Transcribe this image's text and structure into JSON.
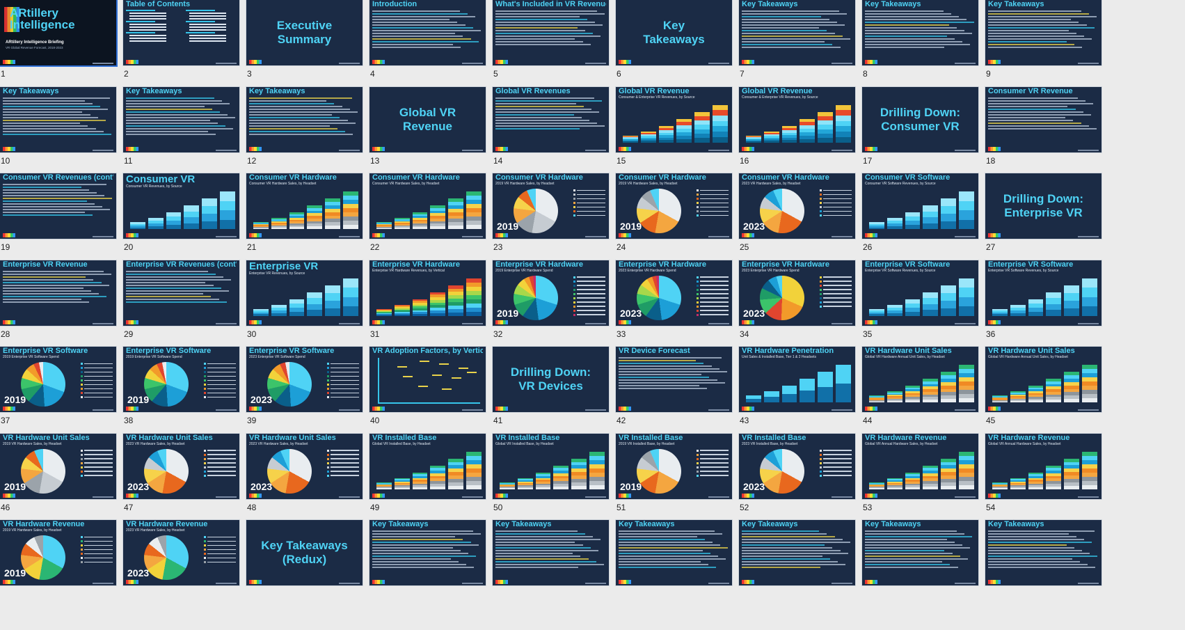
{
  "app": {
    "name": "Slide Sorter"
  },
  "slides": [
    {
      "num": "1",
      "kind": "cover",
      "title": "ARtillery Intelligence",
      "sub1": "ARtillery Intelligence Briefing",
      "sub2": "VR Global Revenue Forecast, 2018-2023"
    },
    {
      "num": "2",
      "kind": "toc",
      "title": "Table of Contents"
    },
    {
      "num": "3",
      "kind": "section",
      "title": "Executive\nSummary"
    },
    {
      "num": "4",
      "kind": "text",
      "title": "Introduction",
      "lines": 14
    },
    {
      "num": "5",
      "kind": "text2",
      "title": "What's Included in VR Revenue Totals?",
      "lines": 13
    },
    {
      "num": "6",
      "kind": "section",
      "title": "Key\nTakeaways"
    },
    {
      "num": "7",
      "kind": "text",
      "title": "Key Takeaways",
      "lines": 14
    },
    {
      "num": "8",
      "kind": "text",
      "title": "Key Takeaways",
      "lines": 14
    },
    {
      "num": "9",
      "kind": "text",
      "title": "Key Takeaways",
      "lines": 14
    },
    {
      "num": "10",
      "kind": "text",
      "title": "Key Takeaways",
      "lines": 14
    },
    {
      "num": "11",
      "kind": "text",
      "title": "Key Takeaways",
      "lines": 14
    },
    {
      "num": "12",
      "kind": "text",
      "title": "Key Takeaways",
      "lines": 14
    },
    {
      "num": "13",
      "kind": "section",
      "title": "Global VR\nRevenue"
    },
    {
      "num": "14",
      "kind": "bullets",
      "title": "Global VR Revenues",
      "lines": 12
    },
    {
      "num": "15",
      "kind": "bars",
      "title": "Global VR Revenue",
      "subtitle": "Consumer & Enterprise VR Revenues, by Source",
      "palette": "a"
    },
    {
      "num": "16",
      "kind": "bars",
      "title": "Global VR Revenue",
      "subtitle": "Consumer & Enterprise VR Revenues, by Source",
      "palette": "a"
    },
    {
      "num": "17",
      "kind": "section",
      "title": "Drilling Down:\nConsumer VR"
    },
    {
      "num": "18",
      "kind": "bullets",
      "title": "Consumer VR Revenue",
      "lines": 12
    },
    {
      "num": "19",
      "kind": "bullets",
      "title": "Consumer VR Revenues (cont'd)",
      "lines": 12
    },
    {
      "num": "20",
      "kind": "bars",
      "title": "Consumer VR",
      "big": true,
      "subtitle": "Consumer VR Revenues, by Source",
      "palette": "b"
    },
    {
      "num": "21",
      "kind": "bars",
      "title": "Consumer VR Hardware",
      "subtitle": "Consumer VR Hardware Sales, by Headset",
      "palette": "c"
    },
    {
      "num": "22",
      "kind": "bars",
      "title": "Consumer VR Hardware",
      "subtitle": "Consumer VR Hardware Sales, by Headset",
      "palette": "c"
    },
    {
      "num": "23",
      "kind": "pie",
      "title": "Consumer VR Hardware",
      "subtitle": "2019 VR Hardware Sales, by Headset",
      "year": "2019",
      "palette": "p1"
    },
    {
      "num": "24",
      "kind": "pie",
      "title": "Consumer VR Hardware",
      "subtitle": "2019 VR Hardware Sales, by Headset",
      "year": "2019",
      "palette": "p2"
    },
    {
      "num": "25",
      "kind": "pie",
      "title": "Consumer VR Hardware",
      "subtitle": "2023 VR Hardware Sales, by Headset",
      "year": "2023",
      "palette": "p3"
    },
    {
      "num": "26",
      "kind": "bars",
      "title": "Consumer VR Software",
      "subtitle": "Consumer VR Software Revenues, by Source",
      "palette": "b"
    },
    {
      "num": "27",
      "kind": "section",
      "title": "Drilling Down:\nEnterprise VR"
    },
    {
      "num": "28",
      "kind": "bullets",
      "title": "Enterprise VR Revenue",
      "lines": 12
    },
    {
      "num": "29",
      "kind": "bullets",
      "title": "Enterprise VR Revenues (cont'd)",
      "lines": 12
    },
    {
      "num": "30",
      "kind": "bars",
      "title": "Enterprise VR",
      "big": true,
      "subtitle": "Enterprise VR Revenues, by Source",
      "palette": "b"
    },
    {
      "num": "31",
      "kind": "bars",
      "title": "Enterprise VR Hardware",
      "subtitle": "Enterprise VR Hardware Revenues, by Vertical",
      "palette": "d"
    },
    {
      "num": "32",
      "kind": "pie",
      "title": "Enterprise VR Hardware",
      "subtitle": "2019 Enterprise VR Hardware Spend",
      "year": "2019",
      "palette": "p4"
    },
    {
      "num": "33",
      "kind": "pie",
      "title": "Enterprise VR Hardware",
      "subtitle": "2023 Enterprise VR Hardware Spend",
      "year": "2023",
      "palette": "p4"
    },
    {
      "num": "34",
      "kind": "pie",
      "title": "Enterprise VR Hardware",
      "subtitle": "2023 Enterprise VR Hardware Spend",
      "year": "2023",
      "palette": "p5"
    },
    {
      "num": "35",
      "kind": "bars",
      "title": "Enterprise VR Software",
      "subtitle": "Enterprise VR Software Revenues, by Source",
      "palette": "b"
    },
    {
      "num": "36",
      "kind": "bars",
      "title": "Enterprise VR Software",
      "subtitle": "Enterprise VR Software Revenues, by Source",
      "palette": "b"
    },
    {
      "num": "37",
      "kind": "pie",
      "title": "Enterprise VR Software",
      "subtitle": "2019 Enterprise VR Software Spend",
      "year": "2019",
      "palette": "p6"
    },
    {
      "num": "38",
      "kind": "pie",
      "title": "Enterprise VR Software",
      "subtitle": "2019 Enterprise VR Software Spend",
      "year": "2019",
      "palette": "p6"
    },
    {
      "num": "39",
      "kind": "pie",
      "title": "Enterprise VR Software",
      "subtitle": "2023 Enterprise VR Software Spend",
      "year": "2023",
      "palette": "p6"
    },
    {
      "num": "40",
      "kind": "adoption",
      "title": "VR Adoption Factors, by Vertical"
    },
    {
      "num": "41",
      "kind": "section",
      "title": "Drilling Down:\nVR Devices"
    },
    {
      "num": "42",
      "kind": "bullets",
      "title": "VR Device Forecast",
      "lines": 12
    },
    {
      "num": "43",
      "kind": "bars",
      "title": "VR Hardware Penetration",
      "subtitle": "Unit Sales & Installed Base, Tier 1 & 2 Headsets",
      "palette": "e"
    },
    {
      "num": "44",
      "kind": "bars",
      "title": "VR Hardware Unit Sales",
      "subtitle": "Global VR Hardware Annual Unit Sales, by Headset",
      "palette": "c"
    },
    {
      "num": "45",
      "kind": "bars",
      "title": "VR Hardware Unit Sales",
      "subtitle": "Global VR Hardware Annual Unit Sales, by Headset",
      "palette": "c"
    },
    {
      "num": "46",
      "kind": "pie",
      "title": "VR Hardware Unit Sales",
      "subtitle": "2019 VR Hardware Sales, by Headset",
      "year": "2019",
      "palette": "p1"
    },
    {
      "num": "47",
      "kind": "pie",
      "title": "VR Hardware Unit Sales",
      "subtitle": "2023 VR Hardware Sales, by Headset",
      "year": "2023",
      "palette": "p3"
    },
    {
      "num": "48",
      "kind": "pie",
      "title": "VR Hardware Unit Sales",
      "subtitle": "2023 VR Hardware Sales, by Headset",
      "year": "2023",
      "palette": "p3"
    },
    {
      "num": "49",
      "kind": "bars",
      "title": "VR Installed Base",
      "subtitle": "Global VR Installed Base, by Headset",
      "palette": "c"
    },
    {
      "num": "50",
      "kind": "bars",
      "title": "VR Installed Base",
      "subtitle": "Global VR Installed Base, by Headset",
      "palette": "c"
    },
    {
      "num": "51",
      "kind": "pie",
      "title": "VR Installed Base",
      "subtitle": "2019 VR Installed Base, by Headset",
      "year": "2019",
      "palette": "p2"
    },
    {
      "num": "52",
      "kind": "pie",
      "title": "VR Installed Base",
      "subtitle": "2023 VR Installed Base, by Headset",
      "year": "2023",
      "palette": "p3"
    },
    {
      "num": "53",
      "kind": "bars",
      "title": "VR Hardware Revenue",
      "subtitle": "Global VR Annual Hardware Sales, by Headset",
      "palette": "c"
    },
    {
      "num": "54",
      "kind": "bars",
      "title": "VR Hardware Revenue",
      "subtitle": "Global VR Annual Hardware Sales, by Headset",
      "palette": "c"
    },
    {
      "num": "",
      "kind": "pie",
      "title": "VR Hardware Revenue",
      "subtitle": "2019 VR Hardware Sales, by Headset",
      "year": "2019",
      "palette": "p7"
    },
    {
      "num": "",
      "kind": "pie",
      "title": "VR Hardware Revenue",
      "subtitle": "2023 VR Hardware Sales, by Headset",
      "year": "2023",
      "palette": "p7"
    },
    {
      "num": "",
      "kind": "section",
      "title": "Key Takeaways\n(Redux)"
    },
    {
      "num": "",
      "kind": "text",
      "title": "Key Takeaways",
      "lines": 14
    },
    {
      "num": "",
      "kind": "text",
      "title": "Key Takeaways",
      "lines": 14
    },
    {
      "num": "",
      "kind": "text",
      "title": "Key Takeaways",
      "lines": 14
    },
    {
      "num": "",
      "kind": "text",
      "title": "Key Takeaways",
      "lines": 14
    },
    {
      "num": "",
      "kind": "text",
      "title": "Key Takeaways",
      "lines": 14
    },
    {
      "num": "",
      "kind": "text",
      "title": "Key Takeaways",
      "lines": 14
    }
  ],
  "colors": {
    "slide_bg": "#1b2b45",
    "accent": "#4fd3f5",
    "page_bg": "#ebebeb"
  },
  "palettes": {
    "a": [
      "#0a5f8a",
      "#1282b8",
      "#22a6d8",
      "#4fd3f5",
      "#8fe4fa",
      "#e84b2a",
      "#f2c43a"
    ],
    "b": [
      "#1170a8",
      "#2aa3dc",
      "#4fd3f5",
      "#9be6fa"
    ],
    "c": [
      "#e9edf0",
      "#b9c0c6",
      "#8d959c",
      "#f4a640",
      "#f08a24",
      "#f6d24a",
      "#1d9fd7",
      "#4fd3f5",
      "#2bb673"
    ],
    "d": [
      "#0b5fa0",
      "#1f8ed0",
      "#4fd3f5",
      "#1f9c66",
      "#3cc46a",
      "#a7d84a",
      "#f2d23a",
      "#f29a2a",
      "#e0452f"
    ],
    "e": [
      "#1170a8",
      "#4fd3f5"
    ],
    "p1": [
      "#e9edf0",
      "#c6ccd2",
      "#9ba3aa",
      "#f4a640",
      "#f6d24a",
      "#e8681e",
      "#4fd3f5"
    ],
    "p2": [
      "#e9edf0",
      "#f4a640",
      "#e8681e",
      "#f6d24a",
      "#c6ccd2",
      "#9ba3aa",
      "#4fd3f5"
    ],
    "p3": [
      "#e9edf0",
      "#e8681e",
      "#f4a640",
      "#f6d24a",
      "#c6ccd2",
      "#1d9fd7",
      "#4fd3f5"
    ],
    "p4": [
      "#4fd3f5",
      "#1d9fd7",
      "#0a5f8a",
      "#1f9c66",
      "#3cc46a",
      "#a7d84a",
      "#f2d23a",
      "#f29a2a",
      "#e0452f",
      "#c62c6a"
    ],
    "p5": [
      "#f2d23a",
      "#f29a2a",
      "#e0452f",
      "#3cc46a",
      "#1f9c66",
      "#0a5f8a",
      "#1d9fd7",
      "#4fd3f5"
    ],
    "p6": [
      "#4fd3f5",
      "#1d9fd7",
      "#0a5f8a",
      "#1f9c66",
      "#3cc46a",
      "#f2d23a",
      "#f29a2a",
      "#e0452f",
      "#e9edf0"
    ],
    "p7": [
      "#4fd3f5",
      "#2bb673",
      "#f2d23a",
      "#f4a640",
      "#e8681e",
      "#e9edf0",
      "#9ba3aa"
    ]
  }
}
